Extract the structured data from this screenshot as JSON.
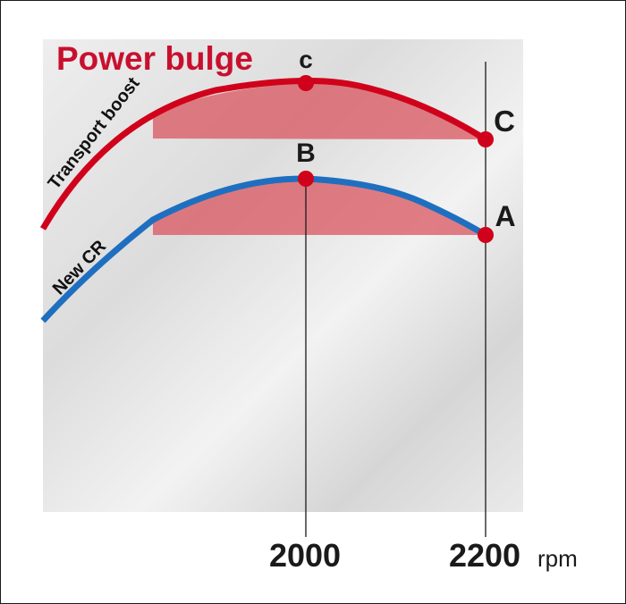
{
  "chart_data": {
    "type": "line",
    "title": "Power bulge",
    "x_unit": "rpm",
    "x_ticks": [
      2000,
      2200
    ],
    "series": [
      {
        "name": "Transport boost",
        "color": "#d0021b"
      },
      {
        "name": "New CR",
        "color": "#1f6fc0"
      }
    ],
    "points": [
      {
        "label": "c",
        "x": 2000,
        "series": "Transport boost"
      },
      {
        "label": "C",
        "x": 2200,
        "series": "Transport boost"
      },
      {
        "label": "B",
        "x": 2000,
        "series": "New CR"
      },
      {
        "label": "A",
        "x": 2200,
        "series": "New CR"
      }
    ],
    "colors": {
      "marker": "#d0021b",
      "shade": "#d9565f",
      "title": "#c8102e"
    }
  }
}
